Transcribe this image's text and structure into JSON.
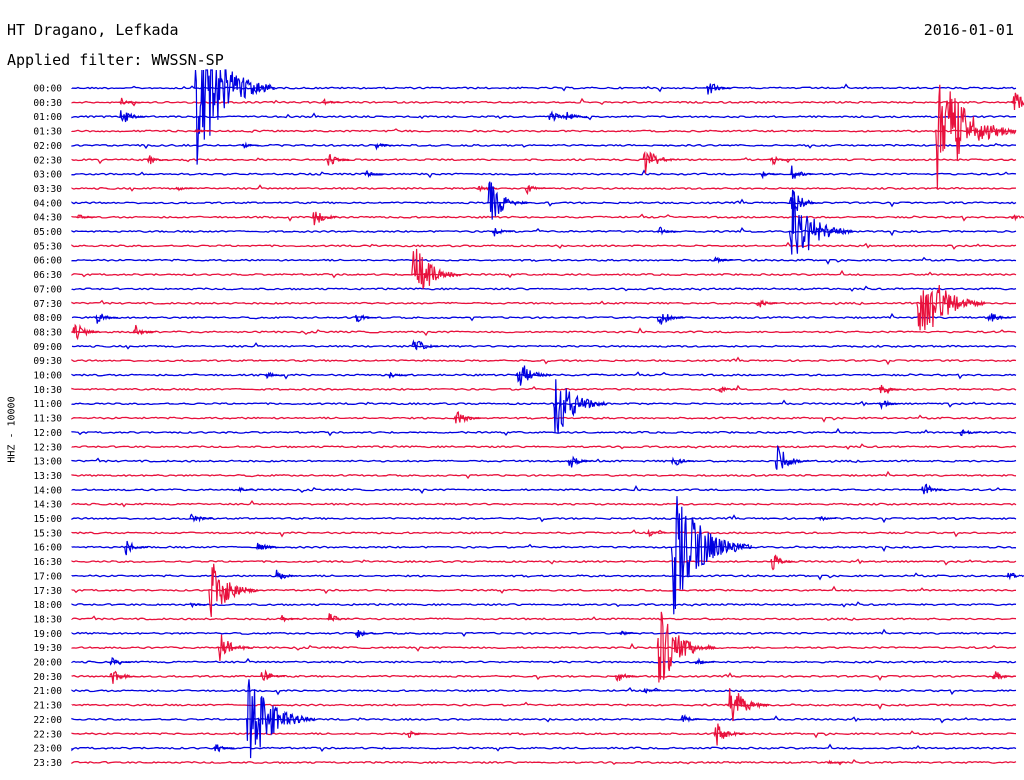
{
  "header": {
    "station": "HT Dragano, Lefkada",
    "date": "2016-01-01",
    "filter": "Applied filter: WWSSN-SP"
  },
  "chart_data": {
    "type": "line",
    "title": "HT Dragano, Lefkada",
    "subtitle": "Applied filter: WWSSN-SP",
    "ylabel": "HHZ - 10000",
    "colors": [
      "#0000e0",
      "#e8103c"
    ],
    "times": [
      "00:00",
      "00:30",
      "01:00",
      "01:30",
      "02:00",
      "02:30",
      "03:00",
      "03:30",
      "04:00",
      "04:30",
      "05:00",
      "05:30",
      "06:00",
      "06:30",
      "07:00",
      "07:30",
      "08:00",
      "08:30",
      "09:00",
      "09:30",
      "10:00",
      "10:30",
      "11:00",
      "11:30",
      "12:00",
      "12:30",
      "13:00",
      "13:30",
      "14:00",
      "14:30",
      "15:00",
      "15:30",
      "16:00",
      "16:30",
      "17:00",
      "17:30",
      "18:00",
      "18:30",
      "19:00",
      "19:30",
      "20:00",
      "20:30",
      "21:00",
      "21:30",
      "22:00",
      "22:30",
      "23:00",
      "23:30"
    ],
    "events": [
      {
        "row": 0,
        "x": 0.13,
        "amp": 95,
        "color": 0
      },
      {
        "row": 0,
        "x": 0.672,
        "amp": 12,
        "color": 0
      },
      {
        "row": 1,
        "x": 0.05,
        "amp": 8,
        "color": 1
      },
      {
        "row": 1,
        "x": 0.265,
        "amp": 5,
        "color": 1
      },
      {
        "row": 1,
        "x": 0.995,
        "amp": 18,
        "color": 1
      },
      {
        "row": 2,
        "x": 0.05,
        "amp": 14,
        "color": 0
      },
      {
        "row": 2,
        "x": 0.505,
        "amp": 12,
        "color": 0
      },
      {
        "row": 2,
        "x": 0.522,
        "amp": 10,
        "color": 0
      },
      {
        "row": 3,
        "x": 0.13,
        "amp": 4,
        "color": 1
      },
      {
        "row": 3,
        "x": 0.915,
        "amp": 85,
        "color": 1
      },
      {
        "row": 4,
        "x": 0.32,
        "amp": 6,
        "color": 0
      },
      {
        "row": 4,
        "x": 0.18,
        "amp": 4,
        "color": 0
      },
      {
        "row": 5,
        "x": 0.08,
        "amp": 8,
        "color": 1
      },
      {
        "row": 5,
        "x": 0.27,
        "amp": 10,
        "color": 1
      },
      {
        "row": 5,
        "x": 0.605,
        "amp": 20,
        "color": 1
      },
      {
        "row": 5,
        "x": 0.74,
        "amp": 8,
        "color": 1
      },
      {
        "row": 6,
        "x": 0.31,
        "amp": 6,
        "color": 0
      },
      {
        "row": 6,
        "x": 0.76,
        "amp": 12,
        "color": 0
      },
      {
        "row": 6,
        "x": 0.73,
        "amp": 6,
        "color": 0
      },
      {
        "row": 7,
        "x": 0.43,
        "amp": 6,
        "color": 1
      },
      {
        "row": 7,
        "x": 0.48,
        "amp": 8,
        "color": 1
      },
      {
        "row": 7,
        "x": 0.11,
        "amp": 4,
        "color": 1
      },
      {
        "row": 8,
        "x": 0.44,
        "amp": 30,
        "color": 0
      },
      {
        "row": 8,
        "x": 0.76,
        "amp": 20,
        "color": 0
      },
      {
        "row": 9,
        "x": 0.255,
        "amp": 14,
        "color": 1
      },
      {
        "row": 9,
        "x": 0.005,
        "amp": 5,
        "color": 1
      },
      {
        "row": 9,
        "x": 0.995,
        "amp": 5,
        "color": 1
      },
      {
        "row": 10,
        "x": 0.445,
        "amp": 8,
        "color": 0
      },
      {
        "row": 10,
        "x": 0.62,
        "amp": 8,
        "color": 0
      },
      {
        "row": 10,
        "x": 0.76,
        "amp": 55,
        "color": 0
      },
      {
        "row": 12,
        "x": 0.68,
        "amp": 6,
        "color": 0
      },
      {
        "row": 13,
        "x": 0.36,
        "amp": 40,
        "color": 1
      },
      {
        "row": 15,
        "x": 0.725,
        "amp": 8,
        "color": 1
      },
      {
        "row": 15,
        "x": 0.895,
        "amp": 60,
        "color": 1
      },
      {
        "row": 16,
        "x": 0.025,
        "amp": 10,
        "color": 0
      },
      {
        "row": 16,
        "x": 0.3,
        "amp": 8,
        "color": 0
      },
      {
        "row": 16,
        "x": 0.62,
        "amp": 14,
        "color": 0
      },
      {
        "row": 16,
        "x": 0.97,
        "amp": 10,
        "color": 0
      },
      {
        "row": 17,
        "x": 0.0,
        "amp": 16,
        "color": 1
      },
      {
        "row": 17,
        "x": 0.065,
        "amp": 10,
        "color": 1
      },
      {
        "row": 18,
        "x": 0.36,
        "amp": 14,
        "color": 0
      },
      {
        "row": 20,
        "x": 0.205,
        "amp": 6,
        "color": 0
      },
      {
        "row": 20,
        "x": 0.335,
        "amp": 6,
        "color": 0
      },
      {
        "row": 20,
        "x": 0.47,
        "amp": 24,
        "color": 0
      },
      {
        "row": 21,
        "x": 0.685,
        "amp": 6,
        "color": 1
      },
      {
        "row": 21,
        "x": 0.855,
        "amp": 8,
        "color": 1
      },
      {
        "row": 22,
        "x": 0.51,
        "amp": 44,
        "color": 0
      },
      {
        "row": 22,
        "x": 0.855,
        "amp": 8,
        "color": 0
      },
      {
        "row": 23,
        "x": 0.405,
        "amp": 14,
        "color": 1
      },
      {
        "row": 24,
        "x": 0.94,
        "amp": 8,
        "color": 0
      },
      {
        "row": 26,
        "x": 0.525,
        "amp": 12,
        "color": 0
      },
      {
        "row": 26,
        "x": 0.635,
        "amp": 10,
        "color": 0
      },
      {
        "row": 26,
        "x": 0.745,
        "amp": 22,
        "color": 0
      },
      {
        "row": 28,
        "x": 0.175,
        "amp": 4,
        "color": 0
      },
      {
        "row": 28,
        "x": 0.9,
        "amp": 12,
        "color": 0
      },
      {
        "row": 30,
        "x": 0.125,
        "amp": 10,
        "color": 0
      },
      {
        "row": 30,
        "x": 0.79,
        "amp": 5,
        "color": 0
      },
      {
        "row": 31,
        "x": 0.61,
        "amp": 6,
        "color": 1
      },
      {
        "row": 32,
        "x": 0.055,
        "amp": 12,
        "color": 0
      },
      {
        "row": 32,
        "x": 0.195,
        "amp": 10,
        "color": 0
      },
      {
        "row": 32,
        "x": 0.635,
        "amp": 80,
        "color": 0
      },
      {
        "row": 33,
        "x": 0.74,
        "amp": 12,
        "color": 1
      },
      {
        "row": 34,
        "x": 0.215,
        "amp": 10,
        "color": 0
      },
      {
        "row": 34,
        "x": 0.99,
        "amp": 8,
        "color": 0
      },
      {
        "row": 35,
        "x": 0.145,
        "amp": 40,
        "color": 1
      },
      {
        "row": 36,
        "x": 0.125,
        "amp": 4,
        "color": 0
      },
      {
        "row": 37,
        "x": 0.22,
        "amp": 6,
        "color": 1
      },
      {
        "row": 37,
        "x": 0.27,
        "amp": 10,
        "color": 1
      },
      {
        "row": 38,
        "x": 0.3,
        "amp": 8,
        "color": 0
      },
      {
        "row": 38,
        "x": 0.58,
        "amp": 4,
        "color": 0
      },
      {
        "row": 39,
        "x": 0.155,
        "amp": 22,
        "color": 1
      },
      {
        "row": 39,
        "x": 0.62,
        "amp": 50,
        "color": 1
      },
      {
        "row": 40,
        "x": 0.04,
        "amp": 8,
        "color": 0
      },
      {
        "row": 40,
        "x": 0.66,
        "amp": 6,
        "color": 0
      },
      {
        "row": 41,
        "x": 0.04,
        "amp": 14,
        "color": 1
      },
      {
        "row": 41,
        "x": 0.2,
        "amp": 12,
        "color": 1
      },
      {
        "row": 41,
        "x": 0.575,
        "amp": 10,
        "color": 1
      },
      {
        "row": 41,
        "x": 0.975,
        "amp": 10,
        "color": 1
      },
      {
        "row": 42,
        "x": 0.605,
        "amp": 4,
        "color": 0
      },
      {
        "row": 43,
        "x": 0.695,
        "amp": 30,
        "color": 1
      },
      {
        "row": 44,
        "x": 0.185,
        "amp": 60,
        "color": 0
      },
      {
        "row": 44,
        "x": 0.645,
        "amp": 8,
        "color": 0
      },
      {
        "row": 45,
        "x": 0.355,
        "amp": 6,
        "color": 1
      },
      {
        "row": 45,
        "x": 0.68,
        "amp": 18,
        "color": 1
      },
      {
        "row": 46,
        "x": 0.15,
        "amp": 8,
        "color": 0
      },
      {
        "row": 47,
        "x": 0.8,
        "amp": 3,
        "color": 1
      }
    ]
  }
}
